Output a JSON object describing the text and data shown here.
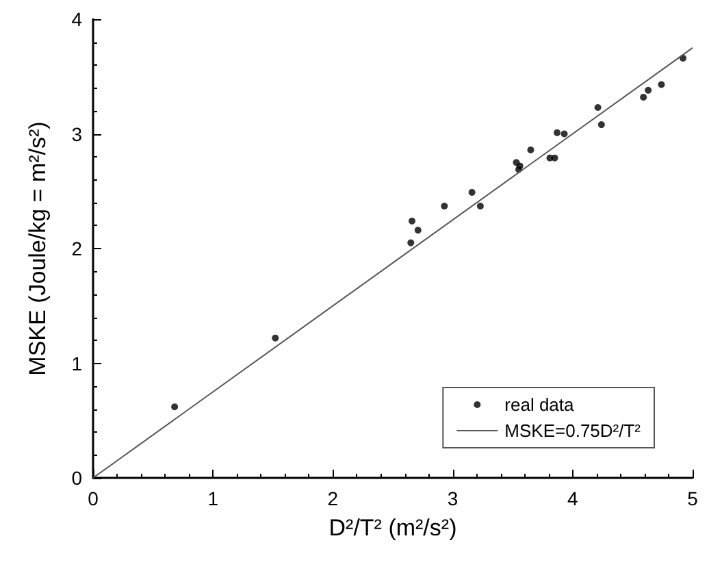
{
  "chart_data": {
    "type": "scatter",
    "xlabel": "D²/T² (m²/s²)",
    "ylabel": "MSKE (Joule/kg = m²/s²)",
    "xlim": [
      0,
      5
    ],
    "ylim": [
      0,
      4
    ],
    "xticks": [
      0,
      1,
      2,
      3,
      4,
      5
    ],
    "yticks": [
      0,
      1,
      2,
      3,
      4
    ],
    "grid": false,
    "legend": "bottom right",
    "marker": "circle",
    "series": [
      {
        "name": "real data",
        "color": "#000000",
        "x": [
          0.68,
          1.52,
          2.65,
          2.66,
          2.71,
          2.93,
          3.16,
          3.23,
          3.53,
          3.56,
          3.55,
          3.65,
          3.81,
          3.85,
          3.87,
          3.93,
          4.21,
          4.24,
          4.59,
          4.63,
          4.74,
          4.92
        ],
        "values": [
          0.62,
          1.22,
          2.05,
          2.24,
          2.16,
          2.37,
          2.49,
          2.37,
          2.75,
          2.72,
          2.69,
          2.86,
          2.79,
          2.79,
          3.01,
          3.0,
          3.23,
          3.08,
          3.32,
          3.38,
          3.43,
          3.66
        ]
      },
      {
        "name": "MSKE=0.75D²/T²",
        "type": "line",
        "color": "#555555",
        "line_style": "solid",
        "marker": "none",
        "x": [
          0,
          5
        ],
        "values": [
          0,
          3.75
        ]
      }
    ]
  }
}
